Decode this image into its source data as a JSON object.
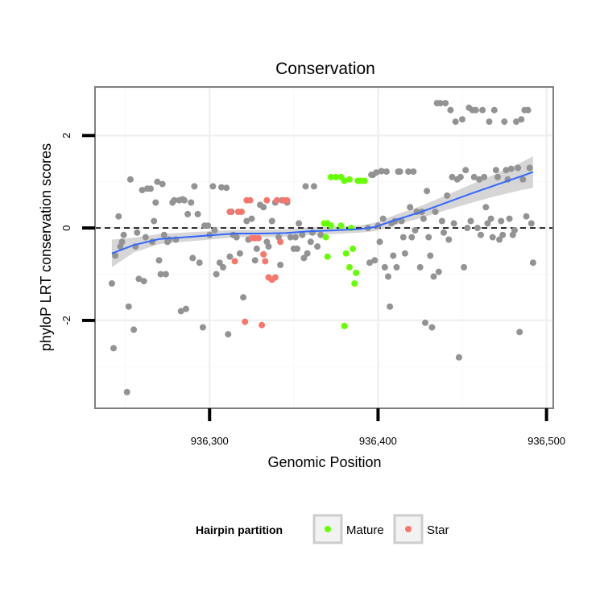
{
  "chart_data": {
    "type": "scatter",
    "title": "Conservation",
    "xlabel": "Genomic Position",
    "ylabel": "phyloP LRT conservation scores",
    "xlim": [
      936232,
      936504
    ],
    "ylim": [
      -3.9,
      3.05
    ],
    "x_ticks": [
      936300,
      936400,
      936500
    ],
    "x_tick_labels": [
      "936,300",
      "936,400",
      "936,500"
    ],
    "y_ticks": [
      -2,
      0,
      2
    ],
    "y_tick_labels": [
      "-2",
      "0",
      "2"
    ],
    "grid": true,
    "reference_line": {
      "y": 0,
      "style": "dashed"
    },
    "legend": {
      "title": "Hairpin partition",
      "placement": "bottom",
      "entries": [
        {
          "label": "Mature",
          "color": "#66ff00"
        },
        {
          "label": "Star",
          "color": "#f8766d"
        }
      ]
    },
    "colors": {
      "other": "#939393",
      "Mature": "#66ff00",
      "Star": "#f8766d",
      "smooth": "#3366ff",
      "ribbon": "#c8c8c8"
    },
    "smooth": {
      "x": [
        936242,
        936255,
        936270,
        936285,
        936300,
        936315,
        936330,
        936345,
        936360,
        936375,
        936390,
        936398,
        936410,
        936425,
        936440,
        936455,
        936470,
        936485,
        936492
      ],
      "y": [
        -0.55,
        -0.37,
        -0.24,
        -0.2,
        -0.16,
        -0.12,
        -0.12,
        -0.11,
        -0.07,
        -0.05,
        -0.02,
        0.02,
        0.17,
        0.34,
        0.54,
        0.74,
        0.93,
        1.12,
        1.21
      ],
      "lower": [
        -0.85,
        -0.53,
        -0.35,
        -0.3,
        -0.25,
        -0.2,
        -0.2,
        -0.19,
        -0.15,
        -0.13,
        -0.1,
        -0.07,
        0.06,
        0.21,
        0.38,
        0.54,
        0.69,
        0.82,
        0.87
      ],
      "upper": [
        -0.25,
        -0.21,
        -0.13,
        -0.1,
        -0.07,
        -0.04,
        -0.04,
        -0.03,
        0.01,
        0.03,
        0.06,
        0.11,
        0.28,
        0.47,
        0.7,
        0.94,
        1.17,
        1.42,
        1.55
      ]
    },
    "series": [
      {
        "name": "Mature",
        "points": [
          [
            936368,
            0.1
          ],
          [
            936369,
            -0.2
          ],
          [
            936370,
            -0.62
          ],
          [
            936370,
            0.1
          ],
          [
            936372,
            0.05
          ],
          [
            936372,
            1.1
          ],
          [
            936375,
            1.1
          ],
          [
            936378,
            1.1
          ],
          [
            936378,
            0.05
          ],
          [
            936380,
            -2.12
          ],
          [
            936380,
            1.02
          ],
          [
            936381,
            -0.55
          ],
          [
            936383,
            1.05
          ],
          [
            936383,
            -0.85
          ],
          [
            936384,
            0.0
          ],
          [
            936385,
            -0.45
          ],
          [
            936386,
            -1.2
          ],
          [
            936387,
            -0.97
          ],
          [
            936388,
            1.02
          ],
          [
            936390,
            1.02
          ],
          [
            936392,
            1.02
          ]
        ]
      },
      {
        "name": "Star",
        "points": [
          [
            936312,
            0.35
          ],
          [
            936315,
            -0.72
          ],
          [
            936317,
            0.35
          ],
          [
            936319,
            0.35
          ],
          [
            936321,
            -2.03
          ],
          [
            936322,
            0.6
          ],
          [
            936324,
            0.6
          ],
          [
            936325,
            -0.22
          ],
          [
            936327,
            -0.22
          ],
          [
            936329,
            -0.22
          ],
          [
            936331,
            -2.1
          ],
          [
            936332,
            -0.57
          ],
          [
            936333,
            -0.72
          ],
          [
            936334,
            0.6
          ],
          [
            936335,
            -1.07
          ],
          [
            936337,
            -1.12
          ],
          [
            936339,
            -1.07
          ],
          [
            936340,
            0.6
          ],
          [
            936342,
            -0.3
          ],
          [
            936344,
            0.6
          ],
          [
            936346,
            0.6
          ]
        ]
      },
      {
        "name": "",
        "points": [
          [
            936242,
            -1.2
          ],
          [
            936243,
            -2.6
          ],
          [
            936244,
            -0.6
          ],
          [
            936246,
            0.25
          ],
          [
            936247,
            -0.4
          ],
          [
            936248,
            -0.3
          ],
          [
            936249,
            -0.15
          ],
          [
            936251,
            -3.55
          ],
          [
            936252,
            -1.7
          ],
          [
            936253,
            1.05
          ],
          [
            936255,
            -2.2
          ],
          [
            936256,
            -0.4
          ],
          [
            936257,
            -0.1
          ],
          [
            936258,
            -1.1
          ],
          [
            936260,
            0.82
          ],
          [
            936261,
            -1.15
          ],
          [
            936262,
            -0.2
          ],
          [
            936263,
            0.85
          ],
          [
            936265,
            0.85
          ],
          [
            936266,
            -0.3
          ],
          [
            936267,
            0.15
          ],
          [
            936268,
            0.55
          ],
          [
            936269,
            1.0
          ],
          [
            936270,
            -0.7
          ],
          [
            936271,
            -1.0
          ],
          [
            936272,
            0.95
          ],
          [
            936273,
            -0.15
          ],
          [
            936274,
            -1.0
          ],
          [
            936275,
            -0.3
          ],
          [
            936276,
            -0.25
          ],
          [
            936278,
            0.55
          ],
          [
            936279,
            0.6
          ],
          [
            936280,
            -0.25
          ],
          [
            936282,
            0.6
          ],
          [
            936283,
            -1.8
          ],
          [
            936284,
            0.62
          ],
          [
            936285,
            0.6
          ],
          [
            936286,
            -1.75
          ],
          [
            936287,
            0.3
          ],
          [
            936289,
            0.55
          ],
          [
            936290,
            -0.65
          ],
          [
            936291,
            0.9
          ],
          [
            936293,
            0.3
          ],
          [
            936294,
            -0.75
          ],
          [
            936296,
            -2.15
          ],
          [
            936297,
            0.05
          ],
          [
            936299,
            0.05
          ],
          [
            936300,
            -0.15
          ],
          [
            936302,
            0.9
          ],
          [
            936303,
            -0.05
          ],
          [
            936304,
            -1.0
          ],
          [
            936306,
            -0.75
          ],
          [
            936307,
            0.88
          ],
          [
            936308,
            -0.85
          ],
          [
            936310,
            0.87
          ],
          [
            936311,
            -2.3
          ],
          [
            936312,
            -0.62
          ],
          [
            936313,
            0.35
          ],
          [
            936314,
            -0.15
          ],
          [
            936316,
            -0.2
          ],
          [
            936318,
            -0.55
          ],
          [
            936320,
            -1.5
          ],
          [
            936322,
            0.15
          ],
          [
            936323,
            -0.25
          ],
          [
            936325,
            0.2
          ],
          [
            936327,
            -0.7
          ],
          [
            936328,
            -0.45
          ],
          [
            936330,
            0.5
          ],
          [
            936332,
            0.45
          ],
          [
            936334,
            -0.3
          ],
          [
            936335,
            -0.4
          ],
          [
            936337,
            0.15
          ],
          [
            936339,
            0.55
          ],
          [
            936341,
            -0.2
          ],
          [
            936342,
            -0.8
          ],
          [
            936343,
            0.6
          ],
          [
            936346,
            0.55
          ],
          [
            936348,
            -0.2
          ],
          [
            936350,
            -0.45
          ],
          [
            936351,
            -0.2
          ],
          [
            936352,
            -0.45
          ],
          [
            936353,
            0.1
          ],
          [
            936355,
            -0.15
          ],
          [
            936356,
            -0.65
          ],
          [
            936357,
            0.9
          ],
          [
            936358,
            -0.55
          ],
          [
            936360,
            -0.3
          ],
          [
            936361,
            -0.1
          ],
          [
            936362,
            0.9
          ],
          [
            936364,
            -0.4
          ],
          [
            936366,
            -0.15
          ],
          [
            936394,
            0.0
          ],
          [
            936395,
            -0.75
          ],
          [
            936396,
            1.15
          ],
          [
            936397,
            1.15
          ],
          [
            936398,
            -0.7
          ],
          [
            936399,
            1.2
          ],
          [
            936400,
            0.05
          ],
          [
            936401,
            -0.3
          ],
          [
            936402,
            1.23
          ],
          [
            936403,
            0.2
          ],
          [
            936404,
            -0.85
          ],
          [
            936405,
            1.22
          ],
          [
            936406,
            -1.05
          ],
          [
            936407,
            -1.7
          ],
          [
            936408,
            0.1
          ],
          [
            936409,
            -0.6
          ],
          [
            936410,
            0.15
          ],
          [
            936411,
            -0.85
          ],
          [
            936412,
            1.22
          ],
          [
            936413,
            1.22
          ],
          [
            936414,
            0.15
          ],
          [
            936415,
            -0.2
          ],
          [
            936416,
            -0.55
          ],
          [
            936418,
            1.22
          ],
          [
            936419,
            0.45
          ],
          [
            936420,
            -0.2
          ],
          [
            936421,
            1.22
          ],
          [
            936422,
            -0.05
          ],
          [
            936423,
            0.35
          ],
          [
            936425,
            -0.85
          ],
          [
            936426,
            0.35
          ],
          [
            936427,
            0.2
          ],
          [
            936428,
            -2.05
          ],
          [
            936429,
            0.8
          ],
          [
            936430,
            -0.2
          ],
          [
            936431,
            -0.6
          ],
          [
            936432,
            -2.15
          ],
          [
            936433,
            -1.05
          ],
          [
            936434,
            0.35
          ],
          [
            936435,
            2.7
          ],
          [
            936436,
            -0.95
          ],
          [
            936437,
            2.7
          ],
          [
            936438,
            0.15
          ],
          [
            936439,
            -0.1
          ],
          [
            936440,
            2.7
          ],
          [
            936441,
            0.7
          ],
          [
            936442,
            -0.25
          ],
          [
            936443,
            2.55
          ],
          [
            936444,
            1.1
          ],
          [
            936445,
            0.1
          ],
          [
            936446,
            2.3
          ],
          [
            936447,
            1.05
          ],
          [
            936448,
            -2.8
          ],
          [
            936449,
            1.1
          ],
          [
            936450,
            2.35
          ],
          [
            936451,
            -0.85
          ],
          [
            936452,
            1.25
          ],
          [
            936453,
            0.0
          ],
          [
            936454,
            2.6
          ],
          [
            936455,
            0.15
          ],
          [
            936456,
            2.55
          ],
          [
            936457,
            1.1
          ],
          [
            936458,
            2.55
          ],
          [
            936459,
            0.0
          ],
          [
            936460,
            1.05
          ],
          [
            936461,
            -0.15
          ],
          [
            936462,
            2.55
          ],
          [
            936463,
            1.1
          ],
          [
            936464,
            0.45
          ],
          [
            936465,
            0.1
          ],
          [
            936466,
            2.3
          ],
          [
            936467,
            0.2
          ],
          [
            936468,
            -0.2
          ],
          [
            936469,
            2.55
          ],
          [
            936470,
            1.25
          ],
          [
            936471,
            1.1
          ],
          [
            936472,
            -0.25
          ],
          [
            936473,
            0.15
          ],
          [
            936474,
            -0.15
          ],
          [
            936475,
            2.3
          ],
          [
            936476,
            1.25
          ],
          [
            936477,
            1.05
          ],
          [
            936478,
            0.2
          ],
          [
            936479,
            1.28
          ],
          [
            936480,
            -0.15
          ],
          [
            936481,
            -0.05
          ],
          [
            936482,
            2.3
          ],
          [
            936483,
            1.3
          ],
          [
            936484,
            -2.25
          ],
          [
            936485,
            2.35
          ],
          [
            936486,
            1.05
          ],
          [
            936487,
            2.55
          ],
          [
            936488,
            0.25
          ],
          [
            936489,
            2.55
          ],
          [
            936490,
            1.3
          ],
          [
            936491,
            0.1
          ],
          [
            936492,
            -0.75
          ]
        ]
      }
    ]
  }
}
